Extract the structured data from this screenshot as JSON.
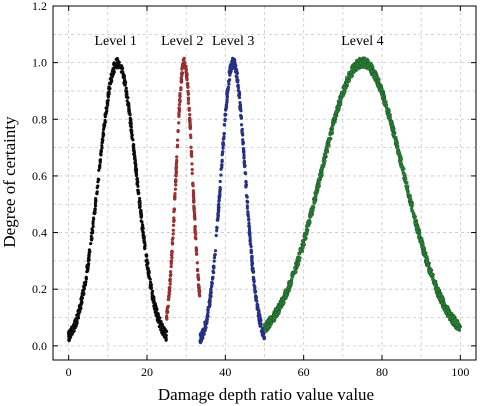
{
  "chart_data": {
    "type": "scatter",
    "title": "",
    "xlabel": "Damage depth ratio value value",
    "ylabel": "Degree of certainty",
    "xlim": [
      -4,
      104
    ],
    "ylim": [
      -0.05,
      1.2
    ],
    "xticks": [
      0,
      20,
      40,
      60,
      80,
      100
    ],
    "yticks": [
      0.0,
      0.2,
      0.4,
      0.6,
      0.8,
      1.0,
      1.2
    ],
    "xtick_labels": [
      "0",
      "20",
      "40",
      "60",
      "80",
      "100"
    ],
    "ytick_labels": [
      "0.0",
      "0.2",
      "0.4",
      "0.6",
      "0.8",
      "1.0",
      "1.2"
    ],
    "grid": true,
    "legend": "none",
    "annotations": [
      {
        "text": "Level 1",
        "x": 12,
        "y": 1.08
      },
      {
        "text": "Level 2",
        "x": 29,
        "y": 1.08
      },
      {
        "text": "Level 3",
        "x": 42,
        "y": 1.08
      },
      {
        "text": "Level 4",
        "x": 75,
        "y": 1.08
      }
    ],
    "series": [
      {
        "color": "#000000",
        "center": 12.5,
        "sigma": 4.8,
        "x_range": [
          0,
          25
        ],
        "peak": 1.0
      },
      {
        "color": "#c0282a",
        "center": 29.5,
        "sigma": 2.1,
        "x_range": [
          25,
          33.5
        ],
        "peak": 1.0
      },
      {
        "color": "#1f2fa8",
        "center": 42.0,
        "sigma": 3.1,
        "x_range": [
          33.5,
          50
        ],
        "peak": 1.0
      },
      {
        "color": "#1e8c2e",
        "center": 75.0,
        "sigma": 10.6,
        "x_range": [
          50,
          100
        ],
        "peak": 1.0
      }
    ]
  }
}
